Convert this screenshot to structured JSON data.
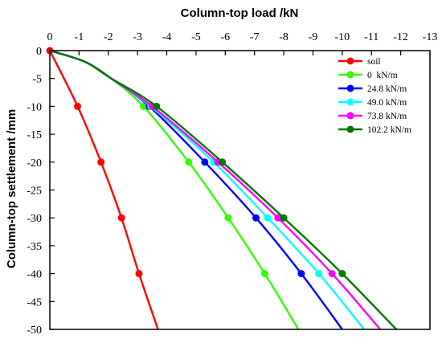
{
  "chart_data": {
    "type": "line",
    "title": "",
    "xlabel": "Column-top load /kN",
    "ylabel": "Column-top settlement /mm",
    "x_axis_position": "top",
    "xlim": [
      0,
      -13
    ],
    "ylim": [
      0,
      -50
    ],
    "x_ticks": [
      0,
      -1,
      -2,
      -3,
      -4,
      -5,
      -6,
      -7,
      -8,
      -9,
      -10,
      -11,
      -12,
      -13
    ],
    "y_ticks": [
      0,
      -5,
      -10,
      -15,
      -20,
      -25,
      -30,
      -35,
      -40,
      -45,
      -50
    ],
    "grid": false,
    "legend_position": "top-right",
    "series": [
      {
        "name": "soil",
        "color": "#ff0000",
        "curve": [
          [
            0,
            0
          ],
          [
            -0.95,
            -10
          ],
          [
            -1.75,
            -20
          ],
          [
            -2.45,
            -30
          ],
          [
            -3.05,
            -40
          ],
          [
            -3.7,
            -50
          ]
        ],
        "markers": [
          [
            0,
            0
          ],
          [
            -0.95,
            -10
          ],
          [
            -1.75,
            -20
          ],
          [
            -2.45,
            -30
          ],
          [
            -3.05,
            -40
          ]
        ]
      },
      {
        "name": "0  kN/m",
        "color": "#33ff00",
        "curve": [
          [
            0,
            0
          ],
          [
            -1.2,
            -2
          ],
          [
            -2.1,
            -5
          ],
          [
            -3.2,
            -10
          ],
          [
            -4.75,
            -20
          ],
          [
            -6.1,
            -30
          ],
          [
            -7.35,
            -40
          ],
          [
            -8.5,
            -50
          ]
        ],
        "markers": [
          [
            -3.2,
            -10
          ],
          [
            -4.75,
            -20
          ],
          [
            -6.1,
            -30
          ],
          [
            -7.35,
            -40
          ]
        ]
      },
      {
        "name": "24.8 kN/m",
        "color": "#0000ff",
        "curve": [
          [
            0,
            0
          ],
          [
            -1.2,
            -2
          ],
          [
            -2.1,
            -5
          ],
          [
            -3.4,
            -10
          ],
          [
            -5.3,
            -20
          ],
          [
            -7.05,
            -30
          ],
          [
            -8.6,
            -40
          ],
          [
            -10.0,
            -50
          ]
        ],
        "markers": [
          [
            -3.4,
            -10
          ],
          [
            -5.3,
            -20
          ],
          [
            -7.05,
            -30
          ],
          [
            -8.6,
            -40
          ]
        ]
      },
      {
        "name": "49.0 kN/m",
        "color": "#00ffff",
        "curve": [
          [
            0,
            0
          ],
          [
            -1.2,
            -2
          ],
          [
            -2.1,
            -5
          ],
          [
            -3.45,
            -10
          ],
          [
            -5.6,
            -20
          ],
          [
            -7.45,
            -30
          ],
          [
            -9.2,
            -40
          ],
          [
            -10.75,
            -50
          ]
        ],
        "markers": [
          [
            -3.45,
            -10
          ],
          [
            -5.6,
            -20
          ],
          [
            -7.45,
            -30
          ],
          [
            -9.2,
            -40
          ]
        ]
      },
      {
        "name": "73.8 kN/m",
        "color": "#ff00ff",
        "curve": [
          [
            0,
            0
          ],
          [
            -1.2,
            -2
          ],
          [
            -2.1,
            -5
          ],
          [
            -3.5,
            -10
          ],
          [
            -5.75,
            -20
          ],
          [
            -7.8,
            -30
          ],
          [
            -9.65,
            -40
          ],
          [
            -11.3,
            -50
          ]
        ],
        "markers": [
          [
            -3.5,
            -10
          ],
          [
            -5.75,
            -20
          ],
          [
            -7.8,
            -30
          ],
          [
            -9.65,
            -40
          ]
        ]
      },
      {
        "name": "102.2 kN/m",
        "color": "#007700",
        "curve": [
          [
            0,
            0
          ],
          [
            -1.2,
            -2
          ],
          [
            -2.1,
            -5
          ],
          [
            -3.65,
            -10
          ],
          [
            -5.9,
            -20
          ],
          [
            -8.0,
            -30
          ],
          [
            -10.0,
            -40
          ],
          [
            -11.85,
            -50
          ]
        ],
        "markers": [
          [
            -3.65,
            -10
          ],
          [
            -5.9,
            -20
          ],
          [
            -8.0,
            -30
          ],
          [
            -10.0,
            -40
          ]
        ]
      }
    ]
  }
}
